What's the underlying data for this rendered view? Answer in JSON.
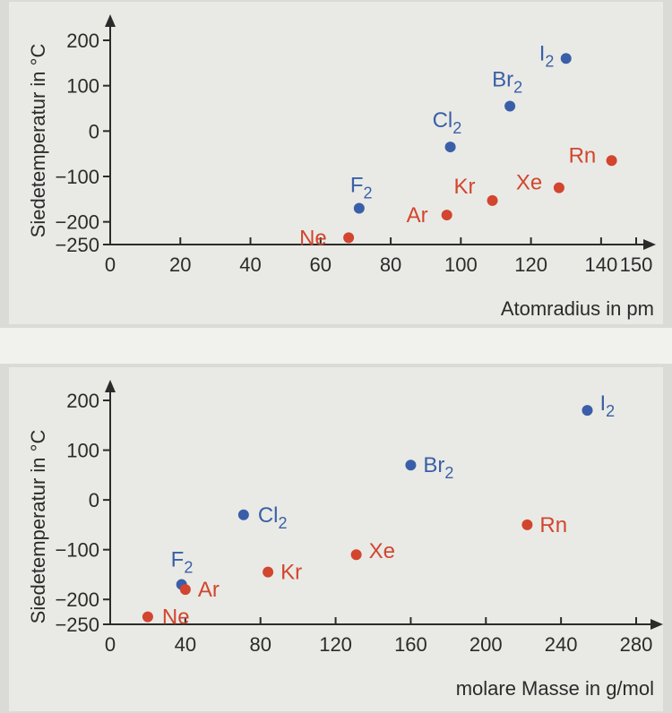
{
  "colors": {
    "halogen": "#3a5fa8",
    "noble": "#d2452f",
    "axis": "#2b2b2b"
  },
  "chart_data": [
    {
      "type": "scatter",
      "xlabel": "Atomradius in pm",
      "ylabel": "Siedetemperatur in °C",
      "xlim": [
        0,
        150
      ],
      "ylim": [
        -250,
        200
      ],
      "x_ticks": [
        "0",
        "20",
        "40",
        "60",
        "80",
        "100",
        "120",
        "140",
        "150"
      ],
      "y_ticks": [
        "200",
        "100",
        "0",
        "−100",
        "−200",
        "−250"
      ],
      "series": [
        {
          "color": "#3a5fa8",
          "points": [
            {
              "label": "F",
              "sub": "2",
              "x": 71,
              "y": -170
            },
            {
              "label": "Cl",
              "sub": "2",
              "x": 97,
              "y": -35
            },
            {
              "label": "Br",
              "sub": "2",
              "x": 114,
              "y": 55
            },
            {
              "label": "I",
              "sub": "2",
              "x": 130,
              "y": 160
            }
          ]
        },
        {
          "color": "#d2452f",
          "points": [
            {
              "label": "Ne",
              "x": 68,
              "y": -235
            },
            {
              "label": "Ar",
              "x": 96,
              "y": -185
            },
            {
              "label": "Kr",
              "x": 109,
              "y": -153
            },
            {
              "label": "Xe",
              "x": 128,
              "y": -125
            },
            {
              "label": "Rn",
              "x": 143,
              "y": -65
            }
          ]
        }
      ]
    },
    {
      "type": "scatter",
      "xlabel": "molare Masse in g/mol",
      "ylabel": "Siedetemperatur in °C",
      "xlim": [
        0,
        280
      ],
      "ylim": [
        -250,
        200
      ],
      "x_ticks": [
        "0",
        "40",
        "80",
        "120",
        "160",
        "200",
        "240",
        "280"
      ],
      "y_ticks": [
        "200",
        "100",
        "0",
        "−100",
        "−200",
        "−250"
      ],
      "series": [
        {
          "color": "#3a5fa8",
          "points": [
            {
              "label": "F",
              "sub": "2",
              "x": 38,
              "y": -170
            },
            {
              "label": "Cl",
              "sub": "2",
              "x": 71,
              "y": -30
            },
            {
              "label": "Br",
              "sub": "2",
              "x": 160,
              "y": 70
            },
            {
              "label": "I",
              "sub": "2",
              "x": 254,
              "y": 180
            }
          ]
        },
        {
          "color": "#d2452f",
          "points": [
            {
              "label": "Ne",
              "x": 20,
              "y": -235
            },
            {
              "label": "Ar",
              "x": 40,
              "y": -180
            },
            {
              "label": "Kr",
              "x": 84,
              "y": -145
            },
            {
              "label": "Xe",
              "x": 131,
              "y": -110
            },
            {
              "label": "Rn",
              "x": 222,
              "y": -50
            }
          ]
        }
      ]
    }
  ]
}
